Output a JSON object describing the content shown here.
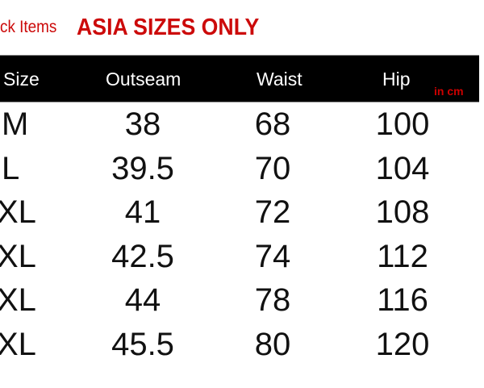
{
  "title": {
    "prefix": "ck Items",
    "main": "ASIA SIZES ONLY"
  },
  "header": {
    "columns": [
      "Size",
      "Outseam",
      "Waist",
      "Hip"
    ],
    "unit": "in cm"
  },
  "rows": [
    {
      "size": "M",
      "outseam": "38",
      "waist": "68",
      "hip": "100"
    },
    {
      "size": "L",
      "outseam": "39.5",
      "waist": "70",
      "hip": "104"
    },
    {
      "size": "XL",
      "outseam": "41",
      "waist": "72",
      "hip": "108"
    },
    {
      "size": "XL",
      "outseam": "42.5",
      "waist": "74",
      "hip": "112"
    },
    {
      "size": "XL",
      "outseam": "44",
      "waist": "78",
      "hip": "116"
    },
    {
      "size": "XL",
      "outseam": "45.5",
      "waist": "80",
      "hip": "120"
    }
  ],
  "colors": {
    "accent": "#cc0a0a",
    "header_bg": "#000000"
  }
}
